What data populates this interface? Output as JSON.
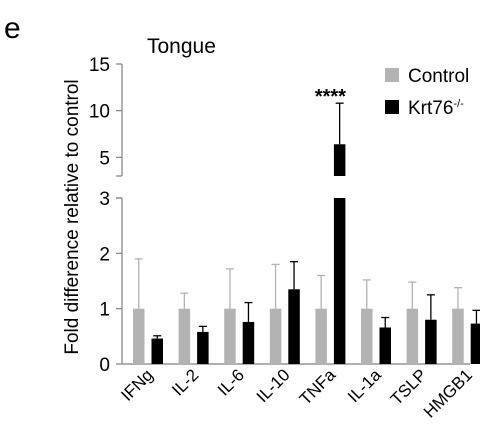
{
  "panel_label": "e",
  "chart_data": {
    "type": "bar",
    "title": "Tongue",
    "ylabel": "Fold difference relative to control",
    "xlabel": "",
    "categories": [
      "IFNg",
      "IL-2",
      "IL-6",
      "IL-10",
      "TNFa",
      "IL-1a",
      "TSLP",
      "HMGB1"
    ],
    "series": [
      {
        "name": "Control",
        "color": "#b3b3b3",
        "values": [
          1.0,
          1.0,
          1.0,
          1.0,
          1.0,
          1.0,
          1.0,
          1.0
        ],
        "errors": [
          0.9,
          0.28,
          0.72,
          0.8,
          0.6,
          0.52,
          0.48,
          0.38
        ]
      },
      {
        "name": "Krt76",
        "name_superscript": "-/-",
        "color": "#000000",
        "values": [
          0.46,
          0.58,
          0.76,
          1.35,
          6.4,
          0.66,
          0.8,
          0.73
        ],
        "errors": [
          0.05,
          0.1,
          0.35,
          0.5,
          4.4,
          0.18,
          0.45,
          0.24
        ]
      }
    ],
    "broken_axis": true,
    "ylim_lower": [
      0,
      3
    ],
    "ylim_upper": [
      3,
      15
    ],
    "yticks_lower": [
      "0",
      "1",
      "2",
      "3"
    ],
    "yticks_upper": [
      "5",
      "10",
      "15"
    ],
    "annotations": [
      {
        "category": "TNFa",
        "text": "****"
      }
    ],
    "legend_position": "top-right",
    "grid": false
  }
}
